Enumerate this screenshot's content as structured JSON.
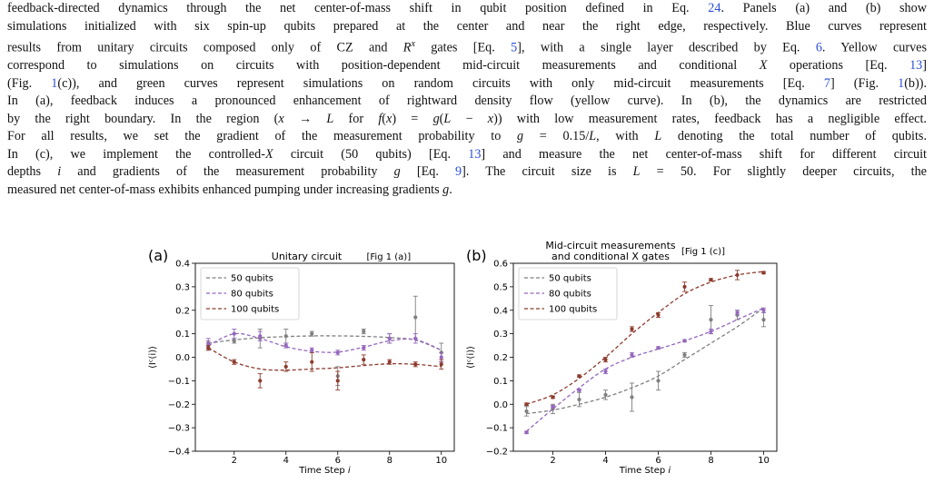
{
  "caption": {
    "lines": [
      [
        {
          "t": "feedback-directed dynamics through the net center-of-mass shift in qubit position defined in Eq. "
        },
        {
          "t": "24",
          "ref": true
        },
        {
          "t": ". Panels (a) and (b) show"
        }
      ],
      [
        {
          "t": "simulations initialized with six spin-up qubits prepared at the center and near the right edge, respectively. Blue curves represent"
        }
      ],
      [
        {
          "t": "results from unitary circuits composed only of CZ and "
        },
        {
          "t": "R",
          "i": true
        },
        {
          "t": "x",
          "sup": true
        },
        {
          "t": " gates [Eq. "
        },
        {
          "t": "5",
          "ref": true
        },
        {
          "t": "], with a single layer described by Eq. "
        },
        {
          "t": "6",
          "ref": true
        },
        {
          "t": ". Yellow curves"
        }
      ],
      [
        {
          "t": "correspond to simulations on circuits with position-dependent mid-circuit measurements and conditional "
        },
        {
          "t": "X",
          "i": true
        },
        {
          "t": " operations [Eq. "
        },
        {
          "t": "13",
          "ref": true
        },
        {
          "t": "]"
        }
      ],
      [
        {
          "t": "(Fig. "
        },
        {
          "t": "1",
          "ref": true
        },
        {
          "t": "(c)), and green curves represent simulations on random circuits with only mid-circuit measurements [Eq. "
        },
        {
          "t": "7",
          "ref": true
        },
        {
          "t": "] (Fig. "
        },
        {
          "t": "1",
          "ref": true
        },
        {
          "t": "(b))."
        }
      ],
      [
        {
          "t": "In (a), feedback induces a pronounced enhancement of rightward density flow (yellow curve). In (b), the dynamics are restricted"
        }
      ],
      [
        {
          "t": "by the right boundary. In the region ("
        },
        {
          "t": "x",
          "i": true
        },
        {
          "t": " → "
        },
        {
          "t": "L",
          "i": true
        },
        {
          "t": " for "
        },
        {
          "t": "f",
          "i": true
        },
        {
          "t": "("
        },
        {
          "t": "x",
          "i": true
        },
        {
          "t": ") = "
        },
        {
          "t": "g",
          "i": true
        },
        {
          "t": "("
        },
        {
          "t": "L",
          "i": true
        },
        {
          "t": " − "
        },
        {
          "t": "x",
          "i": true
        },
        {
          "t": ")) with low measurement rates, feedback has a negligible effect."
        }
      ],
      [
        {
          "t": "For all results, we set the gradient of the measurement probability to "
        },
        {
          "t": "g",
          "i": true
        },
        {
          "t": " = 0.15/"
        },
        {
          "t": "L",
          "i": true
        },
        {
          "t": ", with "
        },
        {
          "t": "L",
          "i": true
        },
        {
          "t": " denoting the total number of qubits."
        }
      ],
      [
        {
          "t": "In (c), we implement the controlled-"
        },
        {
          "t": "X",
          "i": true
        },
        {
          "t": " circuit (50 qubits) [Eq. "
        },
        {
          "t": "13",
          "ref": true
        },
        {
          "t": "] and measure the net center-of-mass shift for different circuit"
        }
      ],
      [
        {
          "t": "depths "
        },
        {
          "t": "i",
          "i": true
        },
        {
          "t": " and gradients of the measurement probability "
        },
        {
          "t": "g",
          "i": true
        },
        {
          "t": " [Eq. "
        },
        {
          "t": "9",
          "ref": true
        },
        {
          "t": "]. The circuit size is "
        },
        {
          "t": "L",
          "i": true
        },
        {
          "t": " = 50. For slightly deeper circuits, the"
        }
      ],
      [
        {
          "t": "measured net center-of-mass exhibits enhanced pumping under increasing gradients "
        },
        {
          "t": "g",
          "i": true
        },
        {
          "t": "."
        }
      ]
    ]
  },
  "chart_data": [
    {
      "type": "line",
      "panel_label": "(a)",
      "title": "Unitary circuit",
      "title_ref": "[Fig 1 (a)]",
      "xlabel": "Time Step i",
      "ylabel": "⟨Iᶜ(i)⟩",
      "xlim": [
        0.5,
        10.5
      ],
      "ylim": [
        -0.4,
        0.4
      ],
      "xticks": [
        2,
        4,
        6,
        8,
        10
      ],
      "yticks": [
        -0.4,
        -0.3,
        -0.2,
        -0.1,
        0.0,
        0.1,
        0.2,
        0.3,
        0.4
      ],
      "ytick_labels": [
        "−0.4",
        "−0.3",
        "−0.2",
        "−0.1",
        "0.0",
        "0.1",
        "0.2",
        "0.3",
        "0.4"
      ],
      "grid": false,
      "legend_position": "top-left",
      "x": [
        1,
        2,
        3,
        4,
        5,
        6,
        7,
        8,
        9,
        10
      ],
      "series": [
        {
          "name": "50 qubits",
          "color": "#7f7f7f",
          "values": [
            0.05,
            0.07,
            0.08,
            0.09,
            0.1,
            -0.08,
            0.11,
            0.08,
            0.17,
            0.02
          ],
          "errors": [
            0.02,
            0.01,
            0.04,
            0.03,
            0.01,
            0.04,
            0.01,
            0.02,
            0.09,
            0.04
          ],
          "fit": [
            0.06,
            0.074,
            0.083,
            0.088,
            0.091,
            0.091,
            0.089,
            0.084,
            0.073,
            0.03
          ]
        },
        {
          "name": "80 qubits",
          "color": "#9467bd",
          "values": [
            0.06,
            0.1,
            0.09,
            0.05,
            0.03,
            0.02,
            0.04,
            0.08,
            0.08,
            0.0
          ],
          "errors": [
            0.02,
            0.02,
            0.02,
            0.01,
            0.01,
            0.01,
            0.01,
            0.02,
            0.02,
            0.02
          ],
          "fit": [
            0.05,
            0.1,
            0.08,
            0.045,
            0.025,
            0.022,
            0.043,
            0.07,
            0.075,
            0.03
          ]
        },
        {
          "name": "100 qubits",
          "color": "#8c3b2e",
          "values": [
            0.04,
            -0.02,
            -0.1,
            -0.04,
            -0.02,
            -0.1,
            -0.01,
            -0.02,
            -0.03,
            -0.03
          ],
          "errors": [
            0.01,
            0.01,
            0.03,
            0.02,
            0.04,
            0.04,
            0.02,
            0.01,
            0.01,
            0.02
          ],
          "fit": [
            0.04,
            -0.02,
            -0.05,
            -0.055,
            -0.05,
            -0.045,
            -0.035,
            -0.028,
            -0.03,
            -0.04
          ]
        }
      ]
    },
    {
      "type": "line",
      "panel_label": "(b)",
      "title": "Mid-circuit  measurements\nand conditional X gates",
      "title_ref": "[Fig 1 (c)]",
      "xlabel": "Time Step i",
      "ylabel": "⟨Iᶜ(i)⟩",
      "xlim": [
        0.5,
        10.5
      ],
      "ylim": [
        -0.2,
        0.6
      ],
      "xticks": [
        2,
        4,
        6,
        8,
        10
      ],
      "yticks": [
        -0.2,
        -0.1,
        0.0,
        0.1,
        0.2,
        0.3,
        0.4,
        0.5,
        0.6
      ],
      "ytick_labels": [
        "−0.2",
        "−0.1",
        "0.0",
        "0.1",
        "0.2",
        "0.3",
        "0.4",
        "0.5",
        "0.6"
      ],
      "grid": false,
      "legend_position": "top-left",
      "x": [
        1,
        2,
        3,
        4,
        5,
        6,
        7,
        8,
        9,
        10
      ],
      "series": [
        {
          "name": "50 qubits",
          "color": "#7f7f7f",
          "values": [
            -0.03,
            -0.02,
            0.02,
            0.04,
            0.03,
            0.1,
            0.21,
            0.36,
            0.38,
            0.36
          ],
          "errors": [
            0.02,
            0.02,
            0.03,
            0.02,
            0.06,
            0.04,
            0.01,
            0.06,
            0.02,
            0.03
          ],
          "fit": [
            -0.04,
            -0.025,
            0.0,
            0.03,
            0.07,
            0.12,
            0.19,
            0.26,
            0.33,
            0.41
          ]
        },
        {
          "name": "80 qubits",
          "color": "#9467bd",
          "values": [
            -0.12,
            -0.01,
            0.06,
            0.14,
            0.21,
            0.24,
            0.27,
            0.31,
            0.39,
            0.4
          ],
          "errors": [
            0.005,
            0.005,
            0.005,
            0.01,
            0.01,
            0.005,
            0.005,
            0.01,
            0.01,
            0.01
          ],
          "fit": [
            -0.115,
            -0.02,
            0.07,
            0.15,
            0.2,
            0.235,
            0.27,
            0.31,
            0.36,
            0.41
          ]
        },
        {
          "name": "100 qubits",
          "color": "#8c3b2e",
          "values": [
            0.0,
            0.03,
            0.12,
            0.19,
            0.32,
            0.38,
            0.5,
            0.53,
            0.55,
            0.56
          ],
          "errors": [
            0.005,
            0.005,
            0.005,
            0.01,
            0.01,
            0.01,
            0.02,
            0.005,
            0.02,
            0.005
          ],
          "fit": [
            0.0,
            0.04,
            0.11,
            0.2,
            0.3,
            0.39,
            0.47,
            0.52,
            0.55,
            0.565
          ]
        }
      ]
    }
  ]
}
